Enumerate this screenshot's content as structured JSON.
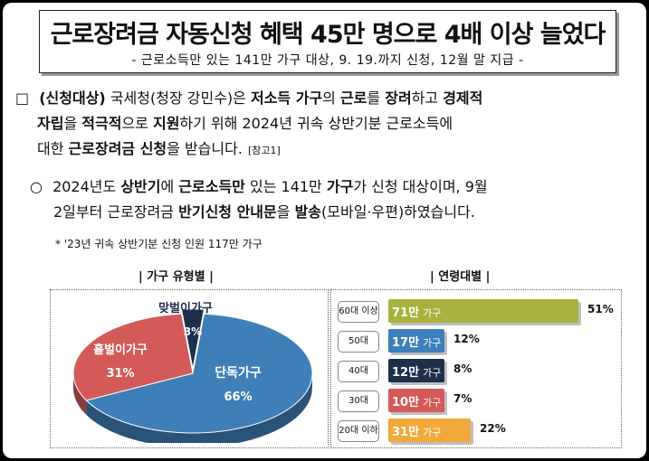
{
  "header": {
    "title": "근로장려금 자동신청 혜택 45만 명으로 4배 이상 늘었다",
    "subtitle": "- 근로소득만 있는 141만 가구 대상, 9. 19.까지 신청, 12월 말 지급 -"
  },
  "body": {
    "p1": {
      "bullet": "□",
      "t1": "(신청대상)",
      "t2": " 국세청(청장 강민수)은 ",
      "t3": "저소득 가구",
      "t4": "의 ",
      "t5": "근로",
      "t6": "를 ",
      "t7": "장려",
      "t8": "하고 ",
      "t9": "경제적",
      "line2a": "자립",
      "line2b": "을 ",
      "line2c": "적극적",
      "line2d": "으로 ",
      "line2e": "지원",
      "line2f": "하기 위해 2024년 귀속 상반기분 근로소득에",
      "line3a": "대한 ",
      "line3b": "근로장려금 신청",
      "line3c": "을 받습니다.",
      "ref": "[참고1]"
    },
    "p2": {
      "bullet": "○",
      "t1": "2024년도 ",
      "t2": "상반기",
      "t3": "에 ",
      "t4": "근로소득만",
      "t5": " 있는 141만 ",
      "t6": "가구",
      "t7": "가 신청 대상이며, 9월",
      "line2a": "2일부터 근로장려금 ",
      "line2b": "반기신청 안내문",
      "line2c": "을 ",
      "line2d": "발송",
      "line2e": "(모바일·우편)하였습니다."
    },
    "note": "* '23년 귀속 상반기분 신청 인원 117만 가구"
  },
  "sections": {
    "left_label": "| 가구 유형별 |",
    "right_label": "| 연령대별 |"
  },
  "chart_data": [
    {
      "type": "pie",
      "title": "| 가구 유형별 |",
      "slices": [
        {
          "name": "단독가구",
          "value": 66,
          "label": "66%",
          "color": "#3f7fb8"
        },
        {
          "name": "홑벌이가구",
          "value": 31,
          "label": "31%",
          "color": "#d45a5a"
        },
        {
          "name": "맞벌이가구",
          "value": 3,
          "label": "3%",
          "color": "#1d2f4a"
        }
      ]
    },
    {
      "type": "bar",
      "title": "| 연령대별 |",
      "orientation": "horizontal",
      "categories": [
        "60대 이상",
        "50대",
        "40대",
        "30대",
        "20대 이하"
      ],
      "values": [
        51,
        12,
        8,
        7,
        22
      ],
      "value_labels": [
        "71만",
        "17만",
        "12만",
        "10만",
        "31만"
      ],
      "unit_label": "가구",
      "pct_labels": [
        "51%",
        "12%",
        "8%",
        "7%",
        "22%"
      ],
      "colors": [
        "#a8b23c",
        "#3d7fba",
        "#1d2f4a",
        "#d45a5a",
        "#f0a93a"
      ]
    }
  ]
}
